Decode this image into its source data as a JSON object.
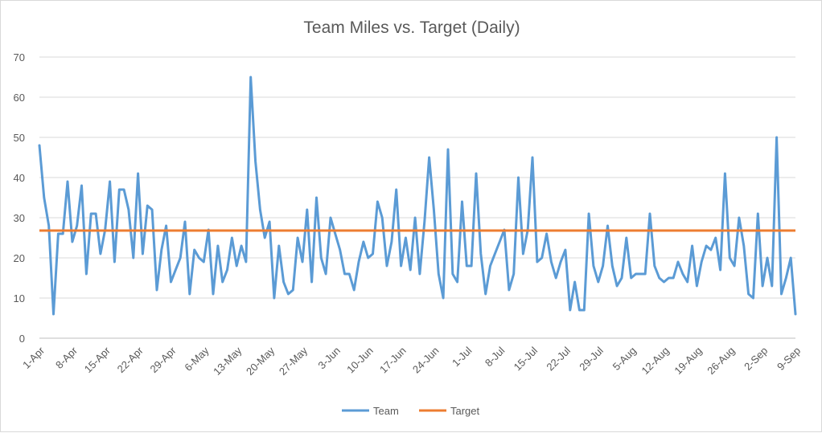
{
  "chart_data": {
    "type": "line",
    "title": "Team Miles vs. Target (Daily)",
    "xlabel": "",
    "ylabel": "",
    "ylim": [
      0,
      70
    ],
    "yticks": [
      0,
      10,
      20,
      30,
      40,
      50,
      60,
      70
    ],
    "grid": true,
    "legend_position": "bottom",
    "x_tick_labels": [
      "1-Apr",
      "8-Apr",
      "15-Apr",
      "22-Apr",
      "29-Apr",
      "6-May",
      "13-May",
      "20-May",
      "27-May",
      "3-Jun",
      "10-Jun",
      "17-Jun",
      "24-Jun",
      "1-Jul",
      "8-Jul",
      "15-Jul",
      "22-Jul",
      "29-Jul",
      "5-Aug",
      "12-Aug",
      "19-Aug",
      "26-Aug",
      "2-Sep",
      "9-Sep"
    ],
    "series": [
      {
        "name": "Team",
        "color": "#5b9bd5",
        "values": [
          48,
          35,
          28,
          6,
          26,
          26,
          39,
          24,
          28,
          38,
          16,
          31,
          31,
          21,
          27,
          39,
          19,
          37,
          37,
          32,
          20,
          41,
          21,
          33,
          32,
          12,
          22,
          28,
          14,
          17,
          20,
          29,
          11,
          22,
          20,
          19,
          27,
          11,
          23,
          14,
          17,
          25,
          18,
          23,
          19,
          65,
          44,
          32,
          25,
          29,
          10,
          23,
          14,
          11,
          12,
          25,
          19,
          32,
          14,
          35,
          20,
          16,
          30,
          26,
          22,
          16,
          16,
          12,
          19,
          24,
          20,
          21,
          34,
          30,
          18,
          24,
          37,
          18,
          25,
          17,
          30,
          16,
          29,
          45,
          32,
          16,
          10,
          47,
          16,
          14,
          34,
          18,
          18,
          41,
          21,
          11,
          18,
          21,
          24,
          27,
          12,
          16,
          40,
          21,
          27,
          45,
          19,
          20,
          26,
          19,
          15,
          19,
          22,
          7,
          14,
          7,
          7,
          31,
          18,
          14,
          18,
          28,
          18,
          13,
          15,
          25,
          15,
          16,
          16,
          16,
          31,
          18,
          15,
          14,
          15,
          15,
          19,
          16,
          14,
          23,
          13,
          19,
          23,
          22,
          25,
          17,
          41,
          20,
          18,
          30,
          23,
          11,
          10,
          31,
          13,
          20,
          13,
          50,
          11,
          15,
          20,
          6
        ]
      },
      {
        "name": "Target",
        "color": "#ed7d31",
        "constant": 26.8
      }
    ]
  }
}
